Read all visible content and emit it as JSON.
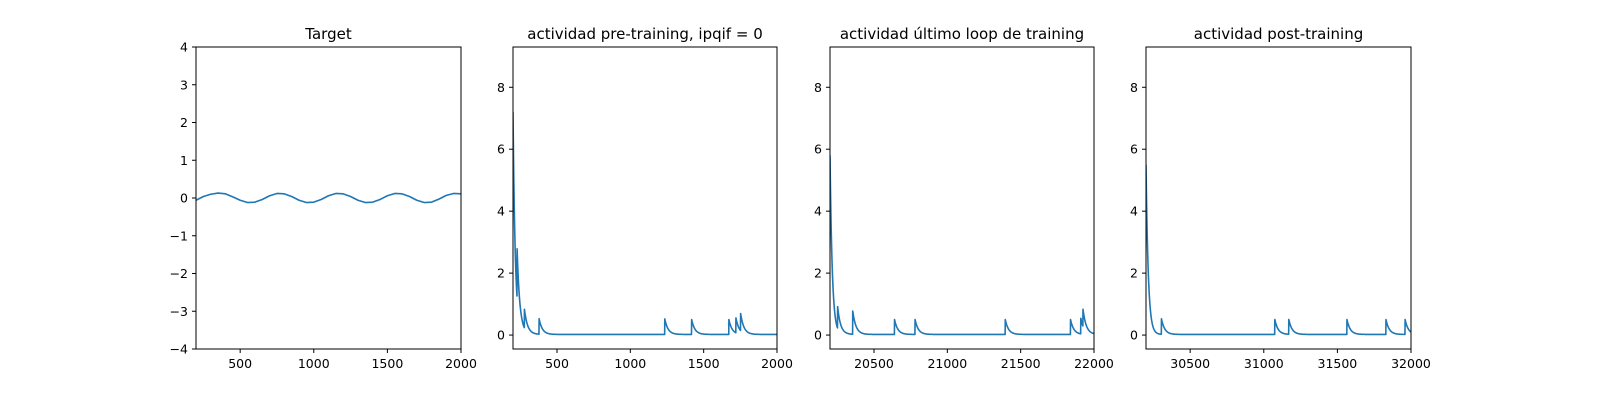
{
  "chart_data": [
    {
      "type": "line",
      "title": "Target",
      "xlim": [
        200,
        2000
      ],
      "ylim": [
        -4,
        4
      ],
      "xticks": [
        500,
        1000,
        1500,
        2000
      ],
      "yticks": [
        -4,
        -3,
        -2,
        -1,
        0,
        1,
        2,
        3,
        4
      ],
      "xtick_labels": [
        "500",
        "1000",
        "1500",
        "2000"
      ],
      "ytick_labels": [
        "−4",
        "−3",
        "−2",
        "−1",
        "0",
        "1",
        "2",
        "3",
        "4"
      ],
      "series": [
        {
          "color": "#1f77b4",
          "x": [
            200,
            250,
            300,
            350,
            400,
            450,
            500,
            550,
            600,
            650,
            700,
            750,
            800,
            850,
            900,
            950,
            1000,
            1050,
            1100,
            1150,
            1200,
            1250,
            1300,
            1350,
            1400,
            1450,
            1500,
            1550,
            1600,
            1650,
            1700,
            1750,
            1800,
            1850,
            1900,
            1950,
            2000
          ],
          "y": [
            -0.06,
            0.04,
            0.1,
            0.13,
            0.11,
            0.03,
            -0.06,
            -0.12,
            -0.11,
            -0.04,
            0.06,
            0.12,
            0.11,
            0.04,
            -0.06,
            -0.12,
            -0.11,
            -0.04,
            0.06,
            0.12,
            0.11,
            0.04,
            -0.06,
            -0.12,
            -0.11,
            -0.04,
            0.06,
            0.12,
            0.11,
            0.04,
            -0.06,
            -0.12,
            -0.11,
            -0.03,
            0.07,
            0.12,
            0.11
          ]
        }
      ]
    },
    {
      "type": "line",
      "title": "actividad pre-training, ipqif = 0",
      "xlim": [
        200,
        2000
      ],
      "ylim": [
        -0.45,
        9.3
      ],
      "xticks": [
        500,
        1000,
        1500,
        2000
      ],
      "yticks": [
        0,
        2,
        4,
        6,
        8
      ],
      "xtick_labels": [
        "500",
        "1000",
        "1500",
        "2000"
      ],
      "ytick_labels": [
        "0",
        "2",
        "4",
        "6",
        "8"
      ],
      "baseline": 0.02,
      "decay": 22,
      "start": {
        "x": 200,
        "y": 7.2
      },
      "spikes": [
        {
          "x": 228,
          "height": 1.6
        },
        {
          "x": 278,
          "height": 0.6
        },
        {
          "x": 378,
          "height": 0.5
        },
        {
          "x": 1235,
          "height": 0.5
        },
        {
          "x": 1418,
          "height": 0.48
        },
        {
          "x": 1672,
          "height": 0.48
        },
        {
          "x": 1720,
          "height": 0.48
        },
        {
          "x": 1752,
          "height": 0.55
        }
      ]
    },
    {
      "type": "line",
      "title": "actividad último loop de training",
      "xlim": [
        20200,
        22000
      ],
      "ylim": [
        -0.45,
        9.3
      ],
      "xticks": [
        20500,
        21000,
        21500,
        22000
      ],
      "yticks": [
        0,
        2,
        4,
        6,
        8
      ],
      "xtick_labels": [
        "20500",
        "21000",
        "21500",
        "22000"
      ],
      "ytick_labels": [
        "0",
        "2",
        "4",
        "6",
        "8"
      ],
      "baseline": 0.02,
      "decay": 22,
      "start": {
        "x": 20200,
        "y": 5.8
      },
      "spikes": [
        {
          "x": 20252,
          "height": 0.7
        },
        {
          "x": 20355,
          "height": 0.75
        },
        {
          "x": 20640,
          "height": 0.48
        },
        {
          "x": 20780,
          "height": 0.48
        },
        {
          "x": 21395,
          "height": 0.48
        },
        {
          "x": 21840,
          "height": 0.48
        },
        {
          "x": 21910,
          "height": 0.5
        },
        {
          "x": 21925,
          "height": 0.55
        }
      ]
    },
    {
      "type": "line",
      "title": "actividad post-training",
      "xlim": [
        30200,
        32000
      ],
      "ylim": [
        -0.45,
        9.3
      ],
      "xticks": [
        30500,
        31000,
        31500,
        32000
      ],
      "yticks": [
        0,
        2,
        4,
        6,
        8
      ],
      "xtick_labels": [
        "30500",
        "31000",
        "31500",
        "32000"
      ],
      "ytick_labels": [
        "0",
        "2",
        "4",
        "6",
        "8"
      ],
      "baseline": 0.02,
      "decay": 22,
      "start": {
        "x": 30200,
        "y": 5.5
      },
      "spikes": [
        {
          "x": 30305,
          "height": 0.5
        },
        {
          "x": 31075,
          "height": 0.48
        },
        {
          "x": 31170,
          "height": 0.48
        },
        {
          "x": 31565,
          "height": 0.48
        },
        {
          "x": 31830,
          "height": 0.48
        },
        {
          "x": 31960,
          "height": 0.48
        }
      ]
    }
  ]
}
